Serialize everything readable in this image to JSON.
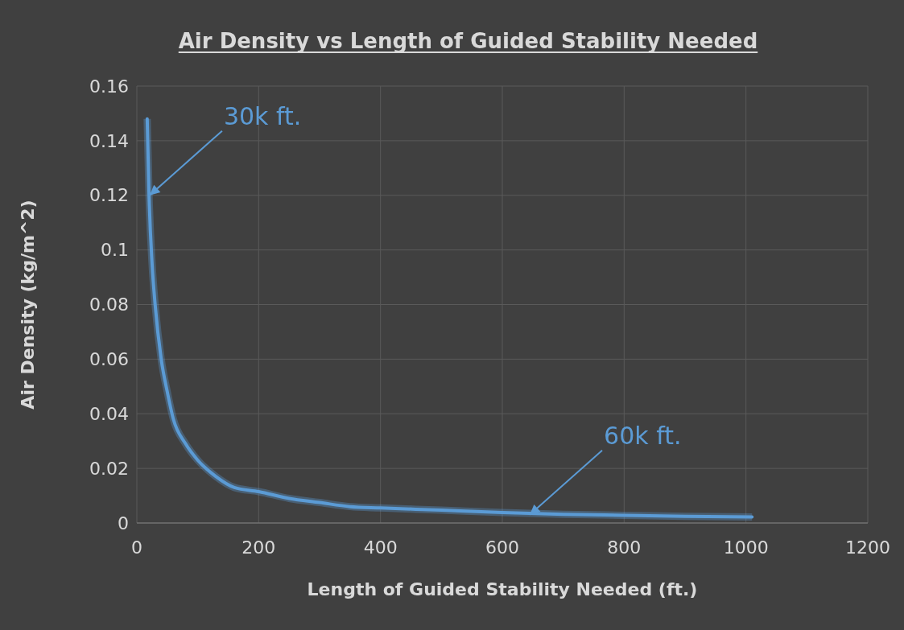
{
  "chart_data": {
    "type": "line",
    "title": "Air Density vs Length of Guided Stability Needed",
    "xlabel": "Length of Guided Stability Needed (ft.)",
    "ylabel": "Air Density (kg/m^2)",
    "series": [
      {
        "color": "#5b9bd5",
        "x": [
          17,
          20,
          25,
          30,
          40,
          50,
          60,
          80,
          100,
          130,
          160,
          200,
          250,
          300,
          350,
          400,
          500,
          600,
          700,
          800,
          900,
          1010
        ],
        "values": [
          0.148,
          0.12,
          0.095,
          0.08,
          0.06,
          0.048,
          0.038,
          0.029,
          0.023,
          0.017,
          0.013,
          0.0115,
          0.009,
          0.0075,
          0.006,
          0.0055,
          0.0047,
          0.0038,
          0.0032,
          0.0028,
          0.0024,
          0.0022
        ]
      }
    ],
    "xlim": [
      0,
      1200
    ],
    "xticks": [
      0,
      200,
      400,
      600,
      800,
      1000,
      1200
    ],
    "ylim": [
      0,
      0.16
    ],
    "yticks": [
      0,
      0.02,
      0.04,
      0.06,
      0.08,
      0.1,
      0.12,
      0.14,
      0.16
    ],
    "grid": true,
    "marker": "none",
    "line_style": "solid",
    "annotations": [
      {
        "text": "30k ft.",
        "x": 21,
        "y": 0.12
      },
      {
        "text": "60k ft.",
        "x": 645,
        "y": 0.003
      }
    ]
  }
}
